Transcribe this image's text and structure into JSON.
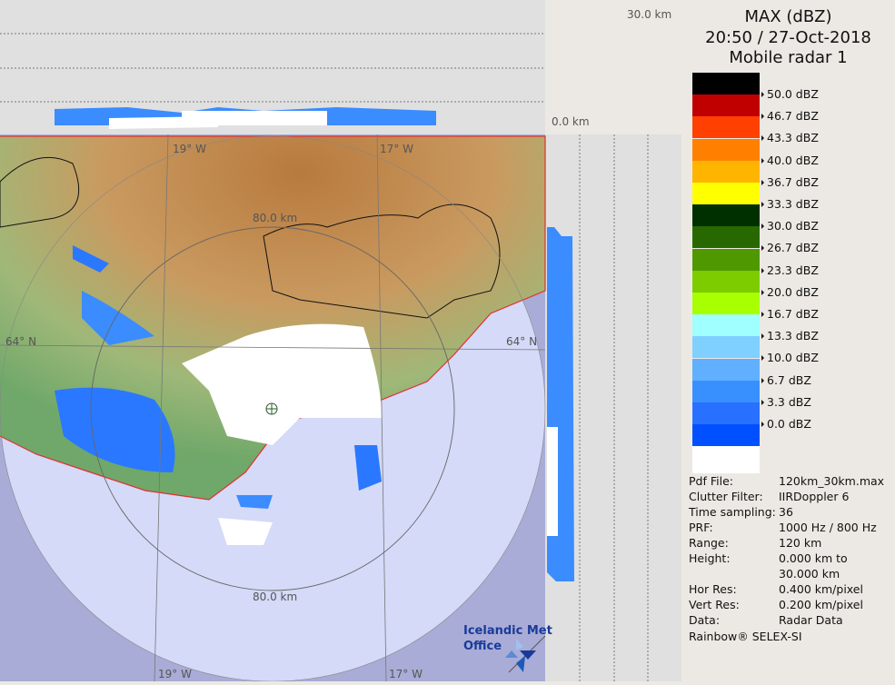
{
  "header": {
    "product": "MAX (dBZ)",
    "datetime": "20:50 / 27-Oct-2018",
    "radar": "Mobile radar 1"
  },
  "legend": {
    "colors": [
      "#000000",
      "#c00000",
      "#ff4000",
      "#ff8000",
      "#ffb400",
      "#ffff00",
      "#003000",
      "#286800",
      "#509800",
      "#7ccc00",
      "#a8ff00",
      "#a0ffff",
      "#80d0ff",
      "#60b0ff",
      "#3890ff",
      "#2870ff",
      "#0050ff",
      "#ffffff"
    ],
    "labels": [
      "50.0 dBZ",
      "46.7 dBZ",
      "43.3 dBZ",
      "40.0 dBZ",
      "36.7 dBZ",
      "33.3 dBZ",
      "30.0 dBZ",
      "26.7 dBZ",
      "23.3 dBZ",
      "20.0 dBZ",
      "16.7 dBZ",
      "13.3 dBZ",
      "10.0 dBZ",
      "6.7 dBZ",
      "3.3 dBZ",
      "0.0 dBZ"
    ]
  },
  "info": [
    {
      "key": "Pdf File:",
      "value": "120km_30km.max"
    },
    {
      "key": "Clutter Filter:",
      "value": "IIRDoppler 6"
    },
    {
      "key": "Time sampling:",
      "value": "36"
    },
    {
      "key": "PRF:",
      "value": "1000 Hz / 800 Hz"
    },
    {
      "key": "Range:",
      "value": "120 km"
    },
    {
      "key": "Height:",
      "value": "0.000 km to"
    },
    {
      "key": "",
      "value": "30.000 km"
    },
    {
      "key": "Hor Res:",
      "value": "0.400 km/pixel"
    },
    {
      "key": "Vert Res:",
      "value": "0.200 km/pixel"
    },
    {
      "key": "Data:",
      "value": "Radar Data"
    }
  ],
  "credit": "Rainbow® SELEX-SI",
  "map": {
    "top_km": "30.0 km",
    "zero_km": "0.0 km",
    "lon_19": "19° W",
    "lon_17": "17° W",
    "lat_64": "64° N",
    "ring_80": "80.0 km",
    "logo_line1": "Icelandic Met",
    "logo_line2": "Office"
  }
}
